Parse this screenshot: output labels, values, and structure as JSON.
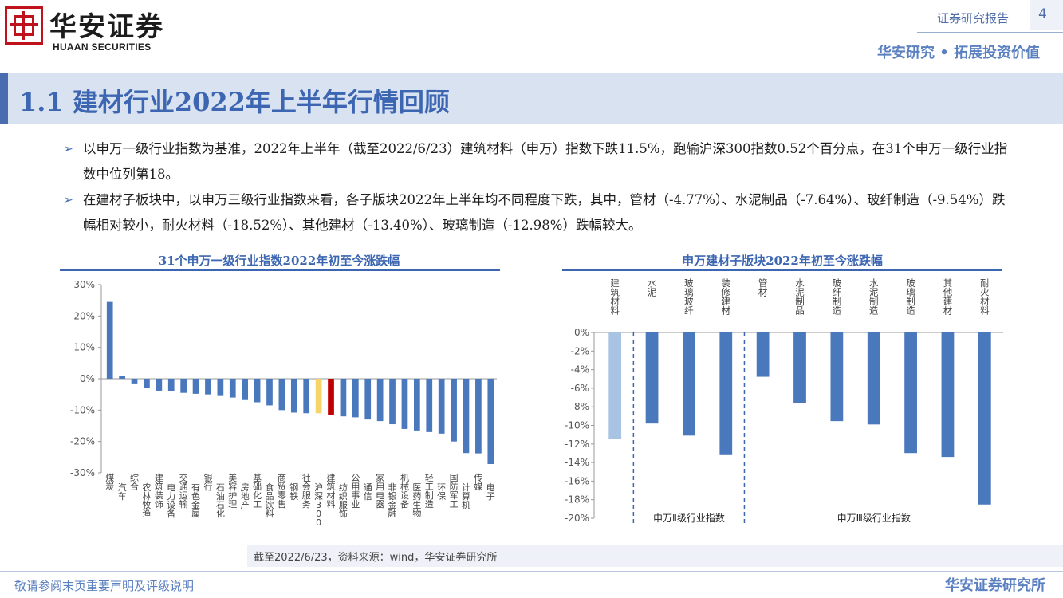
{
  "header": {
    "brand_cn": "华安证券",
    "brand_en": "HUAAN SECURITIES",
    "report_type": "证券研究报告",
    "page_number": "4",
    "slogan": "华安研究 • 拓展投资价值",
    "brand_color": "#c0121d",
    "accent_color": "#3c66b1"
  },
  "title": "1.1 建材行业2022年上半年行情回顾",
  "bullets": [
    "以申万一级行业指数为基准，2022年上半年（截至2022/6/23）建筑材料（申万）指数下跌11.5%，跑输沪深300指数0.52个百分点，在31个申万一级行业指数中位列第18。",
    "在建材子板块中，以申万三级行业指数来看，各子版块2022年上半年均不同程度下跌，其中，管材（-4.77%）、水泥制品（-7.64%）、玻纤制造（-9.54%）跌幅相对较小，耐火材料（-18.52%）、其他建材（-13.40%）、玻璃制造（-12.98%）跌幅较大。"
  ],
  "chart_data": [
    {
      "type": "bar",
      "title": "31个申万一级行业指数2022年初至今涨跌幅",
      "categories": [
        "煤炭",
        "汽车",
        "综合",
        "农林牧渔",
        "建筑装饰",
        "电力设备",
        "交通运输",
        "有色金属",
        "银行",
        "石油石化",
        "美容护理",
        "房地产",
        "基础化工",
        "食品饮料",
        "商贸零售",
        "钢铁",
        "社会服务",
        "沪深300",
        "建筑材料",
        "纺织服饰",
        "公用事业",
        "通信",
        "家用电器",
        "非银金融",
        "机械设备",
        "医药生物",
        "轻工制造",
        "环保",
        "国防军工",
        "计算机",
        "传媒",
        "电子"
      ],
      "values": [
        24.5,
        0.8,
        -1.5,
        -3.0,
        -3.8,
        -4.0,
        -4.5,
        -4.8,
        -5.0,
        -5.5,
        -6.0,
        -6.8,
        -7.5,
        -8.5,
        -10.0,
        -10.8,
        -11.0,
        -11.0,
        -11.5,
        -12.0,
        -12.3,
        -13.0,
        -13.5,
        -14.5,
        -16.0,
        -16.5,
        -17.0,
        -17.5,
        -20.0,
        -23.7,
        -23.8,
        -27.2
      ],
      "highlight": {
        "沪深300": "#f7d46a",
        "建筑材料": "#c00000"
      },
      "bar_color": "#4a78bd",
      "ylim": [
        -30,
        30
      ],
      "yticks": [
        "30%",
        "20%",
        "10%",
        "0%",
        "-10%",
        "-20%",
        "-30%"
      ],
      "grid": false
    },
    {
      "type": "bar",
      "title": "申万建材子版块2022年初至今涨跌幅",
      "categories": [
        "建筑材料",
        "水泥",
        "玻璃玻纤",
        "装修建材",
        "管材",
        "水泥制品",
        "玻纤制造",
        "水泥制造",
        "玻璃制造",
        "其他建材",
        "耐火材料"
      ],
      "values": [
        -11.5,
        -9.8,
        -11.1,
        -13.2,
        -4.77,
        -7.64,
        -9.54,
        -9.9,
        -12.98,
        -13.4,
        -18.52
      ],
      "bar_color": "#4a78bd",
      "first_bar_color": "#a9c3e3",
      "ylim": [
        -20,
        0
      ],
      "yticks": [
        "0%",
        "-2%",
        "-4%",
        "-6%",
        "-8%",
        "-10%",
        "-12%",
        "-14%",
        "-16%",
        "-18%",
        "-20%"
      ],
      "group_labels": [
        "申万Ⅱ级行业指数",
        "申万Ⅲ级行业指数"
      ],
      "grid": false
    }
  ],
  "source": "截至2022/6/23，资料来源：wind，华安证券研究所",
  "footer": {
    "disclaimer": "敬请参阅末页重要声明及评级说明",
    "brand": "华安证券研究所"
  }
}
